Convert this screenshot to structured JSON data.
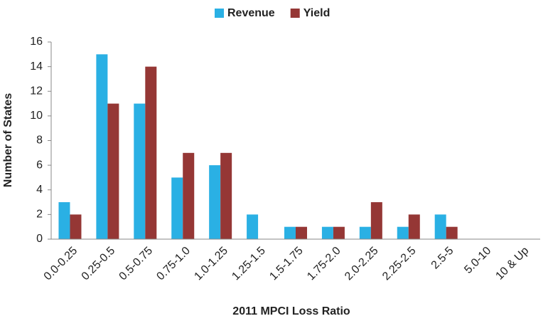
{
  "chart_data": {
    "type": "bar",
    "x_label": "2011 MPCI Loss Ratio",
    "y_label": "Number of States",
    "categories": [
      "0.0-0.25",
      "0.25-0.5",
      "0.5-0.75",
      "0.75-1.0",
      "1.0-1.25",
      "1.25-1.5",
      "1.5-1.75",
      "1.75-2.0",
      "2.0-2.25",
      "2.25-2.5",
      "2.5-5",
      "5.0-10",
      "10 & Up"
    ],
    "series": [
      {
        "name": "Revenue",
        "color": "#2ab0e4",
        "values": [
          3,
          15,
          11,
          5,
          6,
          2,
          1,
          1,
          1,
          1,
          2,
          0,
          0
        ]
      },
      {
        "name": "Yield",
        "color": "#953735",
        "values": [
          2,
          11,
          14,
          7,
          7,
          0,
          1,
          1,
          3,
          2,
          1,
          0,
          0
        ]
      }
    ],
    "ylim": [
      0,
      16
    ],
    "yticks": [
      0,
      2,
      4,
      6,
      8,
      10,
      12,
      14,
      16
    ],
    "grid": false,
    "legend": "top"
  }
}
